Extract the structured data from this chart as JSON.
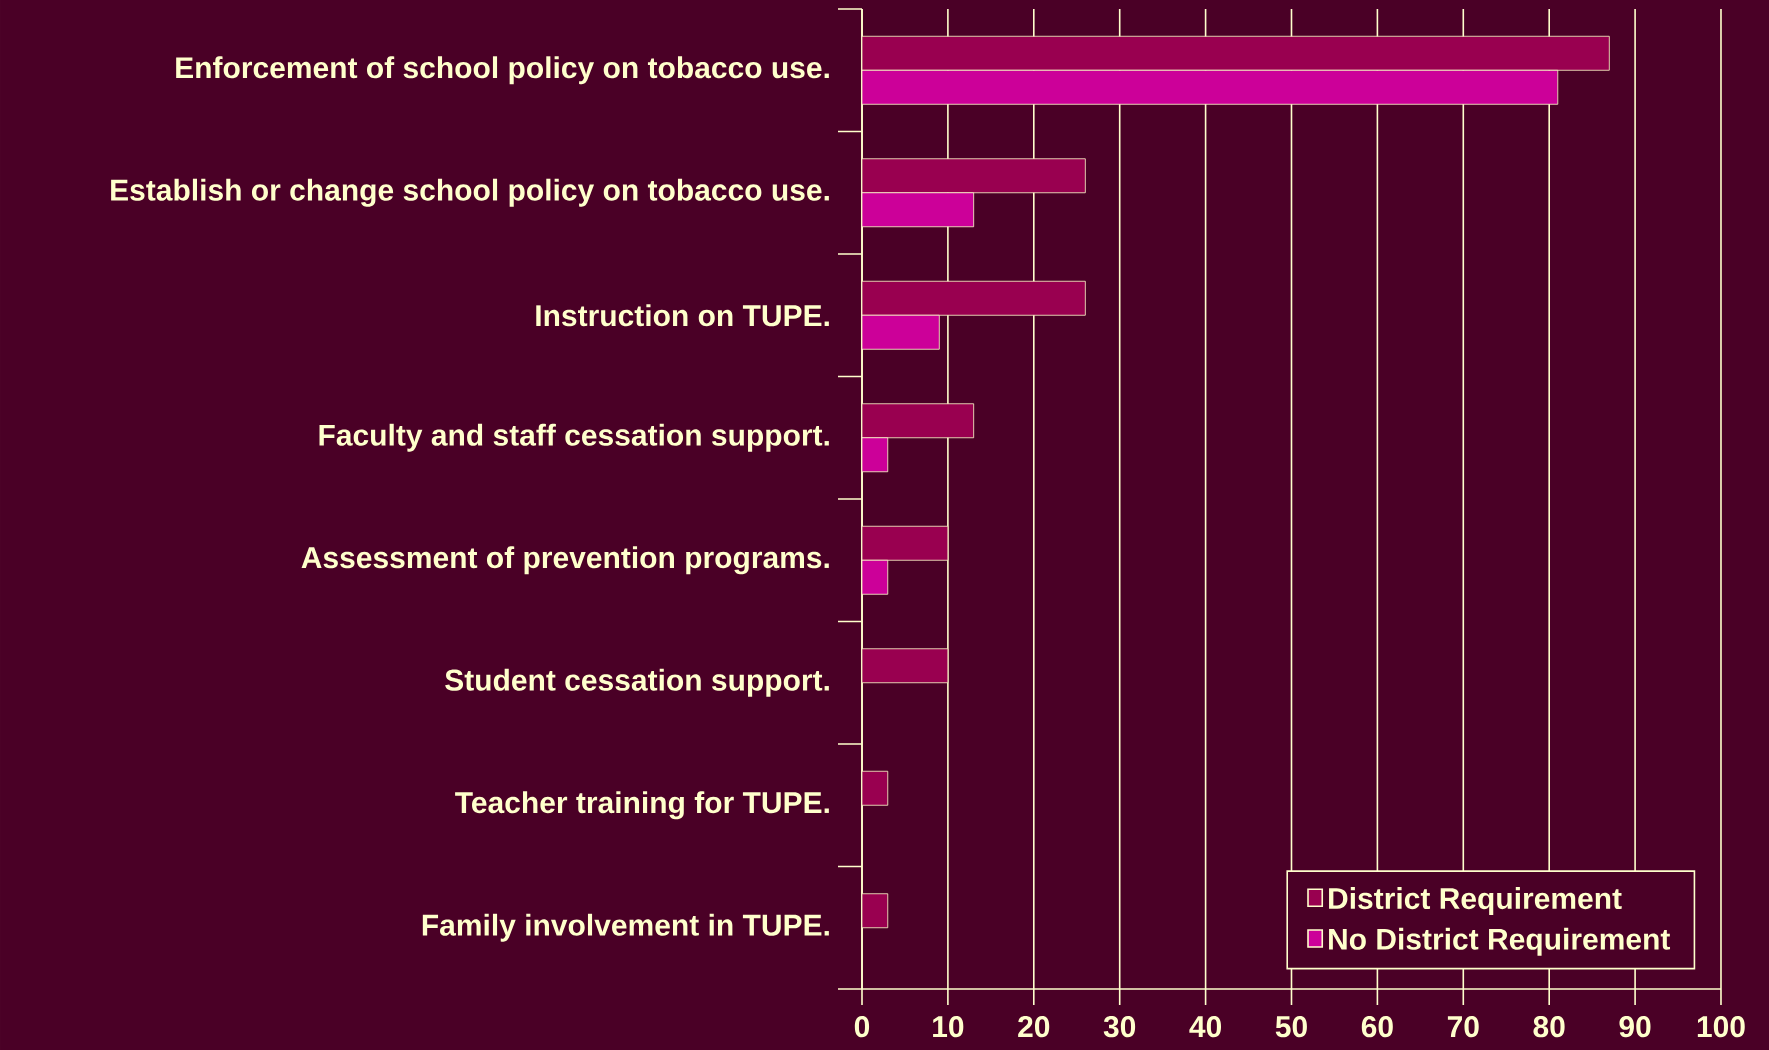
{
  "chart_data": {
    "type": "bar",
    "orientation": "horizontal",
    "categories": [
      "Enforcement of school policy on tobacco use.",
      "Establish or change school policy on tobacco use.",
      "Instruction on TUPE.",
      "Faculty and staff cessation support.",
      "Assessment of prevention programs.",
      "Student cessation support.",
      "Teacher training for TUPE.",
      "Family involvement in TUPE."
    ],
    "series": [
      {
        "name": "District Requirement",
        "color": "#990050",
        "values": [
          87,
          26,
          26,
          13,
          10,
          10,
          3,
          3
        ]
      },
      {
        "name": "No District Requirement",
        "color": "#cc0099",
        "values": [
          81,
          13,
          9,
          3,
          3,
          null,
          null,
          null
        ]
      }
    ],
    "xlim": [
      0,
      100
    ],
    "xticks": [
      0,
      10,
      20,
      30,
      40,
      50,
      60,
      70,
      80,
      90,
      100
    ],
    "grid": "x",
    "legend": "bottom right"
  }
}
